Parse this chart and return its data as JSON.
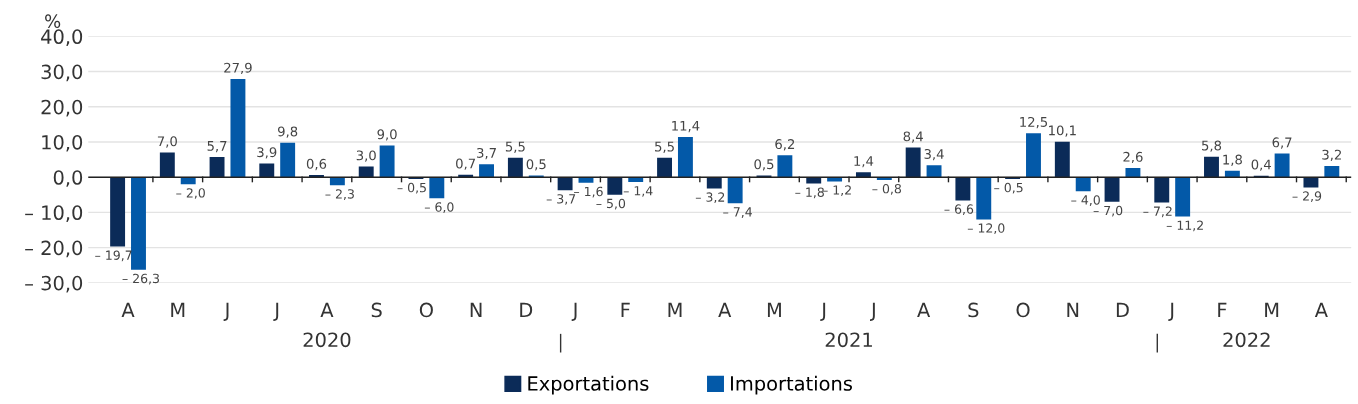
{
  "chart_data": {
    "type": "bar",
    "ylabel": "%",
    "categories": [
      "A",
      "M",
      "J",
      "J",
      "A",
      "S",
      "O",
      "N",
      "D",
      "J",
      "F",
      "M",
      "A",
      "M",
      "J",
      "J",
      "A",
      "S",
      "O",
      "N",
      "D",
      "J",
      "F",
      "M",
      "A"
    ],
    "series": [
      {
        "name": "Exportations",
        "color": "#0b2b58",
        "values": [
          -19.7,
          7.0,
          5.7,
          3.9,
          0.6,
          3.0,
          -0.5,
          0.7,
          5.5,
          -3.7,
          -5.0,
          5.5,
          -3.2,
          0.5,
          -1.8,
          1.4,
          8.4,
          -6.6,
          -0.5,
          10.1,
          -7.0,
          -7.2,
          5.8,
          0.4,
          -2.9
        ],
        "value_labels": [
          "– 19,7",
          "7,0",
          "5,7",
          "3,9",
          "0,6",
          "3,0",
          "– 0,5",
          "0,7",
          "5,5",
          "– 3,7",
          "– 5,0",
          "5,5",
          "– 3,2",
          "0,5",
          "– 1,8",
          "1,4",
          "8,4",
          "– 6,6",
          "– 0,5",
          "10,1",
          "– 7,0",
          "– 7,2",
          "5,8",
          "0,4",
          "– 2,9"
        ]
      },
      {
        "name": "Importations",
        "color": "#0359a8",
        "values": [
          -26.3,
          -2.0,
          27.9,
          9.8,
          -2.3,
          9.0,
          -6.0,
          3.7,
          0.5,
          -1.6,
          -1.4,
          11.4,
          -7.4,
          6.2,
          -1.2,
          -0.8,
          3.4,
          -12.0,
          12.5,
          -4.0,
          2.6,
          -11.2,
          1.8,
          6.7,
          3.2
        ],
        "value_labels": [
          "– 26,3",
          "– 2,0",
          "27,9",
          "9,8",
          "– 2,3",
          "9,0",
          "– 6,0",
          "3,7",
          "0,5",
          "– 1,6",
          "– 1,4",
          "11,4",
          "– 7,4",
          "6,2",
          "– 1,2",
          "– 0,8",
          "3,4",
          "– 12,0",
          "12,5",
          "– 4,0",
          "2,6",
          "– 11,2",
          "1,8",
          "6,7",
          "3,2"
        ]
      }
    ],
    "annotations": [
      "2020",
      "2021",
      "2022"
    ],
    "ylim": [
      -30,
      40
    ],
    "yticks": [
      {
        "value": -30,
        "label": "– 30,0"
      },
      {
        "value": -20,
        "label": "– 20,0"
      },
      {
        "value": -10,
        "label": "– 10,0"
      },
      {
        "value": 0,
        "label": "0,0"
      },
      {
        "value": 10,
        "label": "10,0"
      },
      {
        "value": 20,
        "label": "20,0"
      },
      {
        "value": 30,
        "label": "30,0"
      },
      {
        "value": 40,
        "label": "40,0"
      }
    ],
    "grid": "y",
    "legend": "bottom"
  }
}
